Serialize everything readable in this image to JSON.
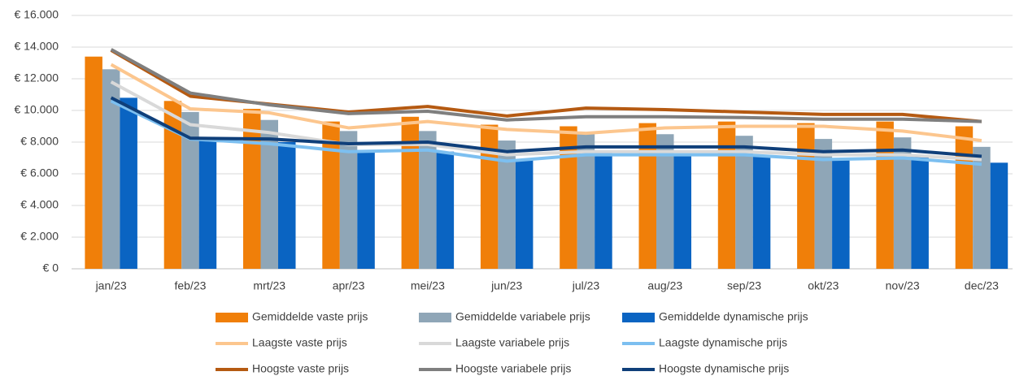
{
  "chart_data": {
    "type": "bar",
    "categories": [
      "jan/23",
      "feb/23",
      "mrt/23",
      "apr/23",
      "mei/23",
      "jun/23",
      "jul/23",
      "aug/23",
      "sep/23",
      "okt/23",
      "nov/23",
      "dec/23"
    ],
    "ylim": [
      0,
      16000
    ],
    "yticks": [
      {
        "value": 0,
        "label": "€ 0"
      },
      {
        "value": 2000,
        "label": "€ 2.000"
      },
      {
        "value": 4000,
        "label": "€ 4.000"
      },
      {
        "value": 6000,
        "label": "€ 6.000"
      },
      {
        "value": 8000,
        "label": "€ 8.000"
      },
      {
        "value": 10000,
        "label": "€ 10.000"
      },
      {
        "value": 12000,
        "label": "€ 12.000"
      },
      {
        "value": 14000,
        "label": "€ 14.000"
      },
      {
        "value": 16000,
        "label": "€ 16.000"
      }
    ],
    "grid": true,
    "legend": "bottom",
    "series": [
      {
        "name": "Gemiddelde vaste prijs",
        "type": "bar",
        "color": "#f07f09",
        "values": [
          13400,
          10600,
          10100,
          9300,
          9600,
          9100,
          9000,
          9200,
          9300,
          9200,
          9300,
          9000
        ]
      },
      {
        "name": "Gemiddelde variabele prijs",
        "type": "bar",
        "color": "#8fa6b7",
        "values": [
          12600,
          9900,
          9400,
          8700,
          8700,
          8100,
          8500,
          8500,
          8400,
          8200,
          8300,
          7700
        ]
      },
      {
        "name": "Gemiddelde dynamische prijs",
        "type": "bar",
        "color": "#0a64c2",
        "values": [
          10800,
          8200,
          8000,
          7500,
          7400,
          6900,
          7300,
          7200,
          7100,
          7000,
          7200,
          6700
        ]
      },
      {
        "name": "Laagste vaste prijs",
        "type": "line",
        "color": "#fcc68e",
        "values": [
          12900,
          10100,
          9850,
          8900,
          9300,
          8800,
          8560,
          8900,
          9000,
          9000,
          8700,
          8100
        ]
      },
      {
        "name": "Laagste variabele prijs",
        "type": "line",
        "color": "#d9d9d9",
        "values": [
          11800,
          9100,
          8600,
          7850,
          7850,
          7200,
          7400,
          7400,
          7400,
          7200,
          7200,
          6900
        ]
      },
      {
        "name": "Laagste dynamische prijs",
        "type": "line",
        "color": "#7cbff0",
        "values": [
          10600,
          8200,
          7900,
          7400,
          7500,
          6800,
          7200,
          7200,
          7200,
          6900,
          7000,
          6600
        ]
      },
      {
        "name": "Hoogste vaste prijs",
        "type": "line",
        "color": "#b55a12",
        "values": [
          13800,
          10900,
          10400,
          9900,
          10250,
          9650,
          10150,
          10050,
          9900,
          9750,
          9750,
          9300
        ]
      },
      {
        "name": "Hoogste variabele prijs",
        "type": "line",
        "color": "#7f7f7f",
        "values": [
          13850,
          11100,
          10350,
          9800,
          9950,
          9400,
          9600,
          9600,
          9550,
          9450,
          9450,
          9300
        ]
      },
      {
        "name": "Hoogste dynamische prijs",
        "type": "line",
        "color": "#0f3f7a",
        "values": [
          10800,
          8250,
          8200,
          7900,
          8000,
          7400,
          7700,
          7700,
          7700,
          7400,
          7500,
          7100
        ]
      }
    ]
  }
}
